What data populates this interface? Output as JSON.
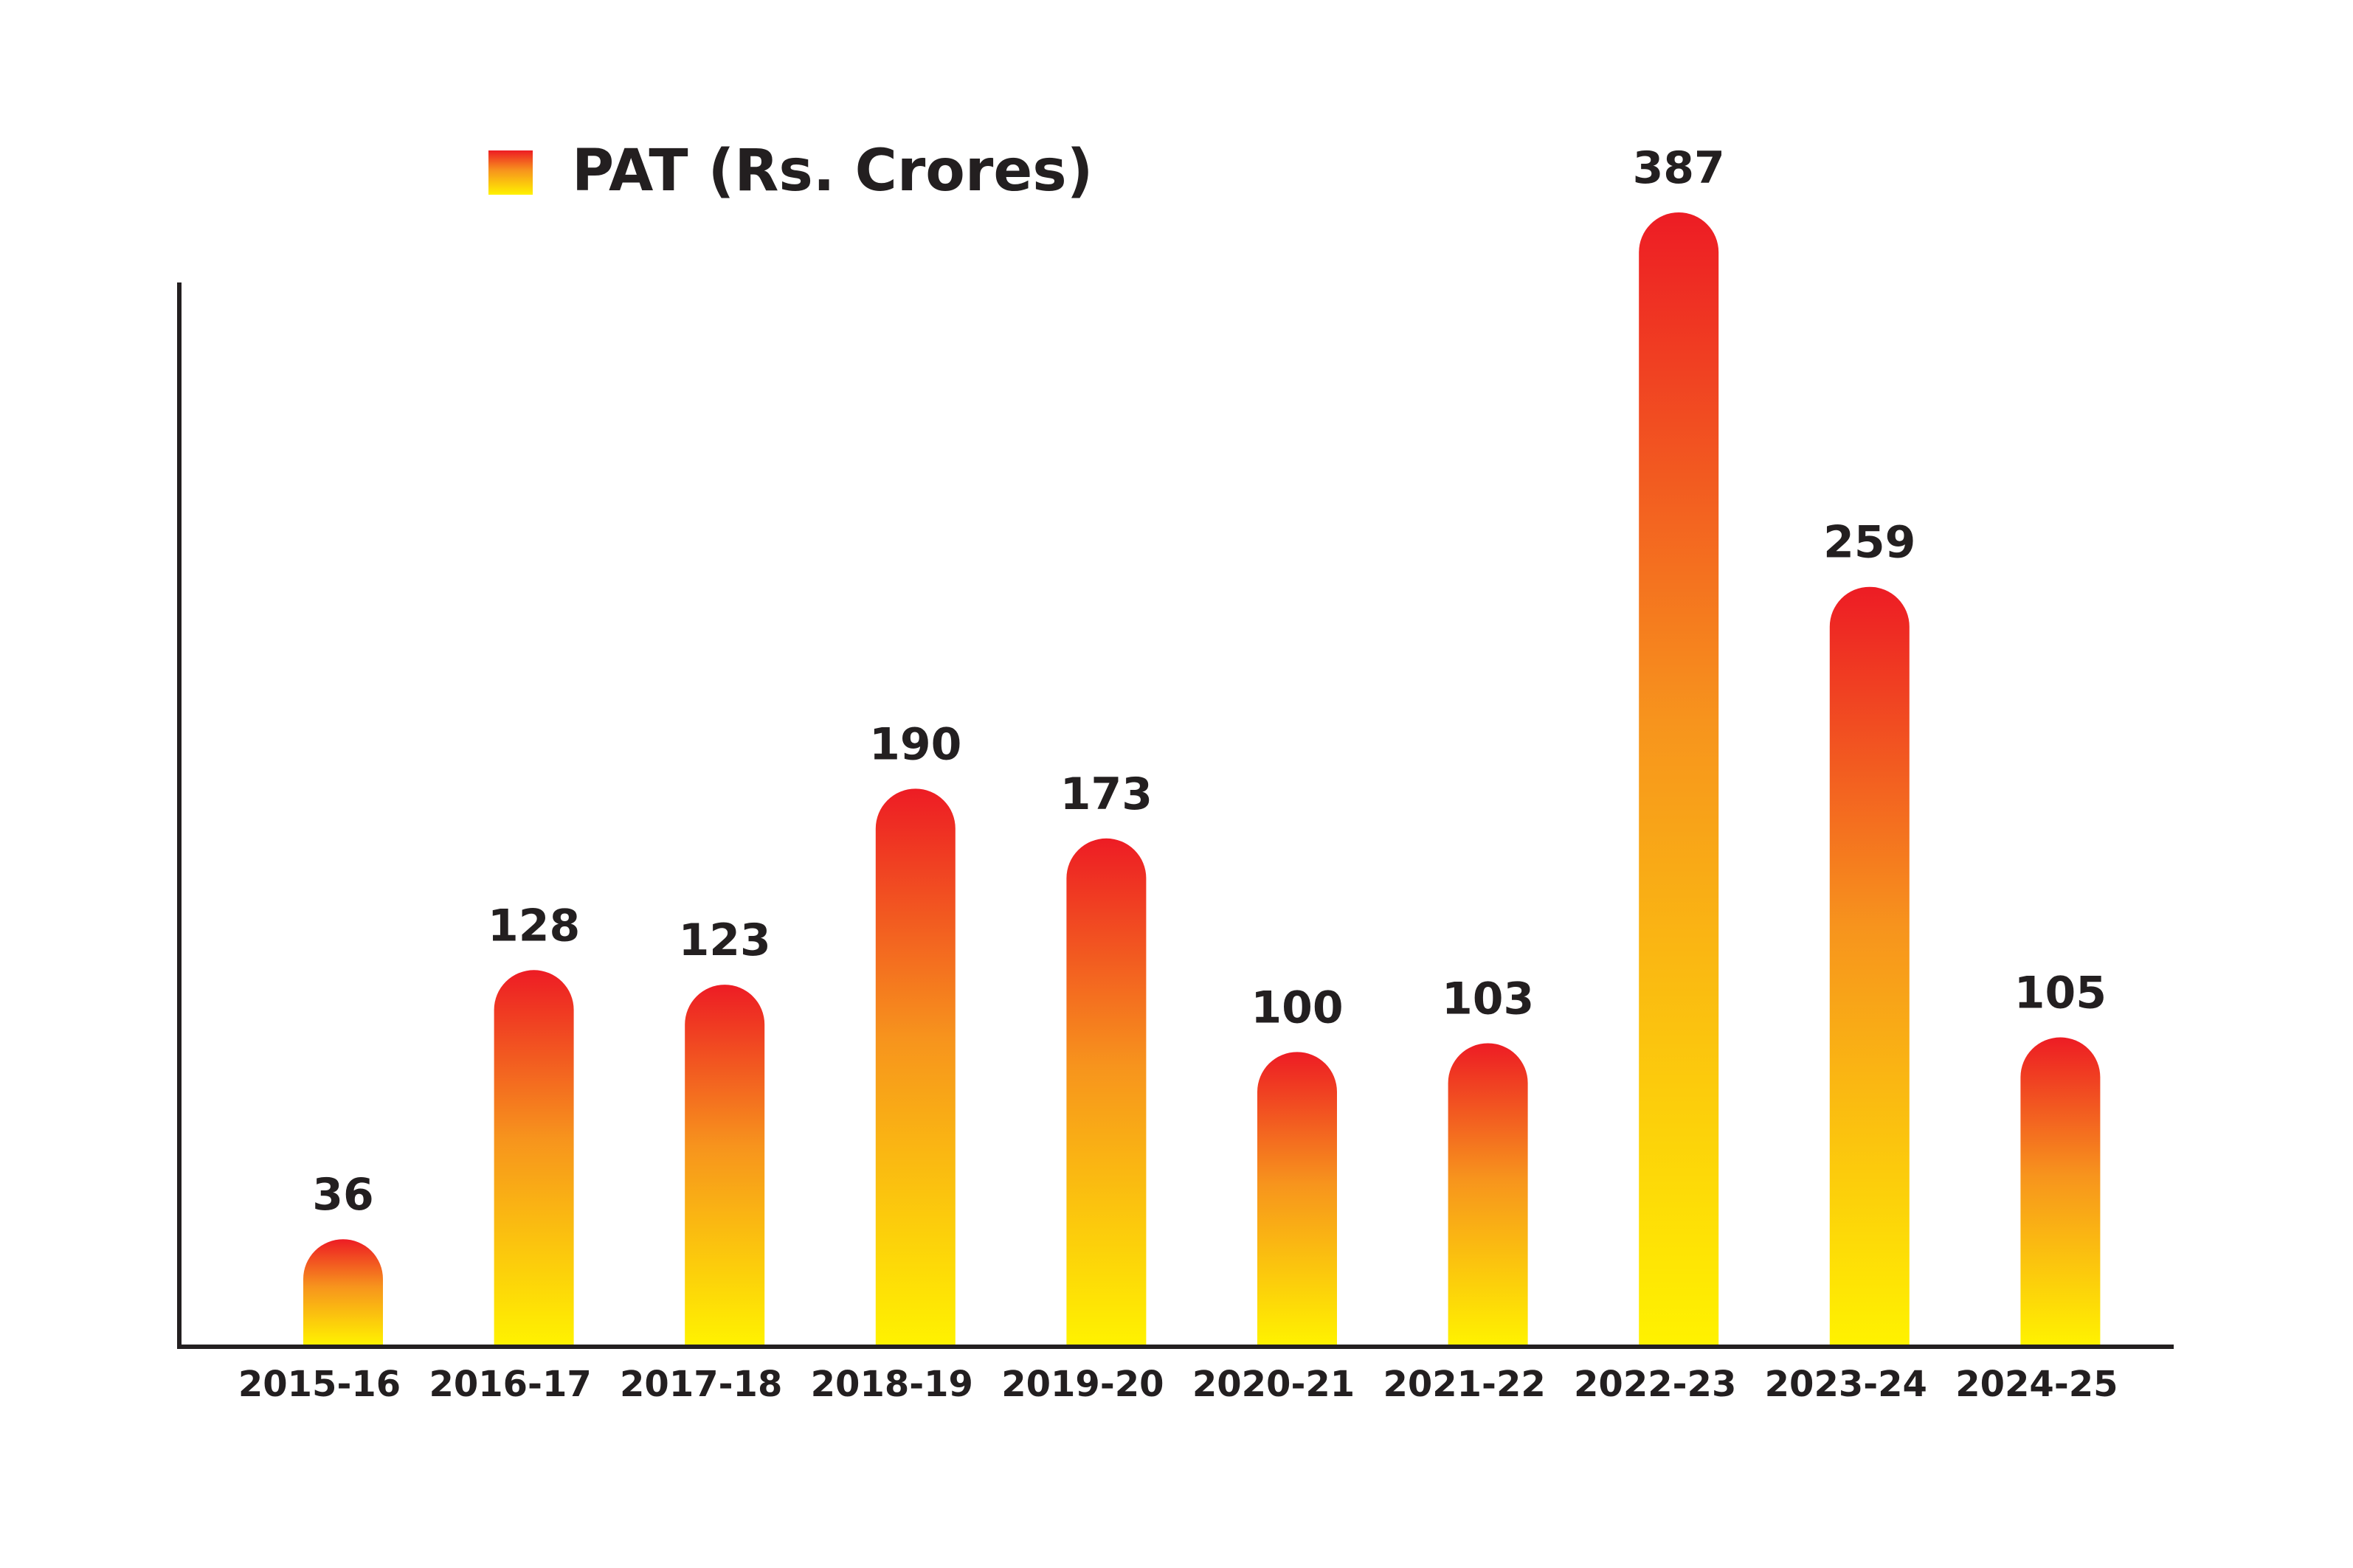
{
  "chart_data": {
    "type": "bar",
    "categories": [
      "2015-16",
      "2016-17",
      "2017-18",
      "2018-19",
      "2019-20",
      "2020-21",
      "2021-22",
      "2022-23",
      "2023-24",
      "2024-25"
    ],
    "series": [
      {
        "name": "PAT (Rs. Crores)",
        "values": [
          36,
          128,
          123,
          190,
          173,
          100,
          103,
          387,
          259,
          105
        ]
      }
    ],
    "legend_position": "top-left",
    "grid": false,
    "colors": {
      "bar_top": "#ed1c24",
      "bar_mid": "#f7941d",
      "bar_bottom": "#fff200",
      "axis": "#231f20",
      "text": "#231f20"
    }
  }
}
